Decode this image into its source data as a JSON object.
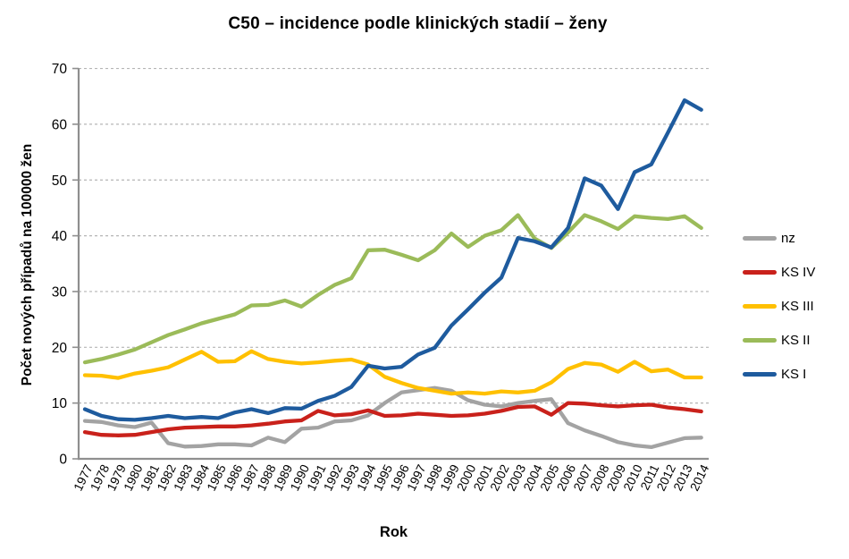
{
  "title": "C50 – incidence podle klinických stadií – ženy",
  "colors": {
    "axis": "#8f8f8f",
    "grid": "#b5b5b5",
    "text": "#000000"
  },
  "chart_data": {
    "type": "line",
    "title": "C50 – incidence podle klinických stadií – ženy",
    "xlabel": "Rok",
    "ylabel": "Počet nových případů na 100000 žen",
    "ylim": [
      0,
      70
    ],
    "ytick_step": 10,
    "yticks": [
      0,
      10,
      20,
      30,
      40,
      50,
      60,
      70
    ],
    "grid": "horizontal-dashed",
    "legend_position": "right",
    "x": [
      1977,
      1978,
      1979,
      1980,
      1981,
      1982,
      1983,
      1984,
      1985,
      1986,
      1987,
      1988,
      1989,
      1990,
      1991,
      1992,
      1993,
      1994,
      1995,
      1996,
      1997,
      1998,
      1999,
      2000,
      2001,
      2002,
      2003,
      2004,
      2005,
      2006,
      2007,
      2008,
      2009,
      2010,
      2011,
      2012,
      2013,
      2014
    ],
    "series": [
      {
        "name": "nz",
        "key": "nz",
        "color": "#a3a3a3",
        "values": [
          6.8,
          6.6,
          6.0,
          5.7,
          6.5,
          2.8,
          2.2,
          2.3,
          2.6,
          2.6,
          2.4,
          3.8,
          3.0,
          5.4,
          5.6,
          6.7,
          6.9,
          7.8,
          10.0,
          11.9,
          12.3,
          12.7,
          12.2,
          10.5,
          9.7,
          9.4,
          10.0,
          10.4,
          10.7,
          6.4,
          5.1,
          4.1,
          3.0,
          2.4,
          2.1,
          2.9,
          3.7,
          3.8
        ]
      },
      {
        "name": "KS IV",
        "key": "ks-iv",
        "color": "#c9211b",
        "values": [
          4.8,
          4.3,
          4.2,
          4.3,
          4.8,
          5.3,
          5.6,
          5.7,
          5.8,
          5.8,
          6.0,
          6.3,
          6.7,
          6.9,
          8.6,
          7.8,
          8.0,
          8.7,
          7.7,
          7.8,
          8.1,
          7.9,
          7.7,
          7.8,
          8.1,
          8.6,
          9.3,
          9.4,
          7.9,
          10.0,
          9.9,
          9.6,
          9.4,
          9.6,
          9.7,
          9.2,
          8.9,
          8.5
        ]
      },
      {
        "name": "KS III",
        "key": "ks-iii",
        "color": "#ffc000",
        "values": [
          15.0,
          14.9,
          14.5,
          15.3,
          15.8,
          16.4,
          17.8,
          19.2,
          17.4,
          17.5,
          19.3,
          17.9,
          17.4,
          17.1,
          17.3,
          17.6,
          17.8,
          16.9,
          14.7,
          13.6,
          12.7,
          12.2,
          11.7,
          11.9,
          11.7,
          12.1,
          11.9,
          12.2,
          13.7,
          16.1,
          17.2,
          16.9,
          15.6,
          17.4,
          15.7,
          16.0,
          14.6,
          14.6
        ]
      },
      {
        "name": "KS II",
        "key": "ks-ii",
        "color": "#9bbb59",
        "values": [
          17.3,
          17.9,
          18.7,
          19.6,
          20.9,
          22.2,
          23.2,
          24.3,
          25.1,
          25.9,
          27.5,
          27.6,
          28.4,
          27.3,
          29.4,
          31.2,
          32.4,
          37.4,
          37.5,
          36.6,
          35.6,
          37.4,
          40.4,
          38.0,
          40.0,
          41.0,
          43.7,
          39.5,
          37.8,
          40.6,
          43.7,
          42.6,
          41.2,
          43.5,
          43.2,
          43.0,
          43.5,
          41.4
        ]
      },
      {
        "name": "KS I",
        "key": "ks-i",
        "color": "#1e5b9e",
        "values": [
          8.9,
          7.7,
          7.1,
          7.0,
          7.3,
          7.7,
          7.3,
          7.5,
          7.3,
          8.3,
          8.9,
          8.2,
          9.1,
          9.0,
          10.4,
          11.3,
          12.9,
          16.7,
          16.2,
          16.5,
          18.7,
          19.9,
          23.9,
          26.8,
          29.8,
          32.5,
          39.6,
          39.0,
          37.9,
          41.4,
          50.3,
          49.0,
          44.8,
          51.4,
          52.8,
          58.5,
          64.3,
          62.6
        ]
      }
    ]
  }
}
